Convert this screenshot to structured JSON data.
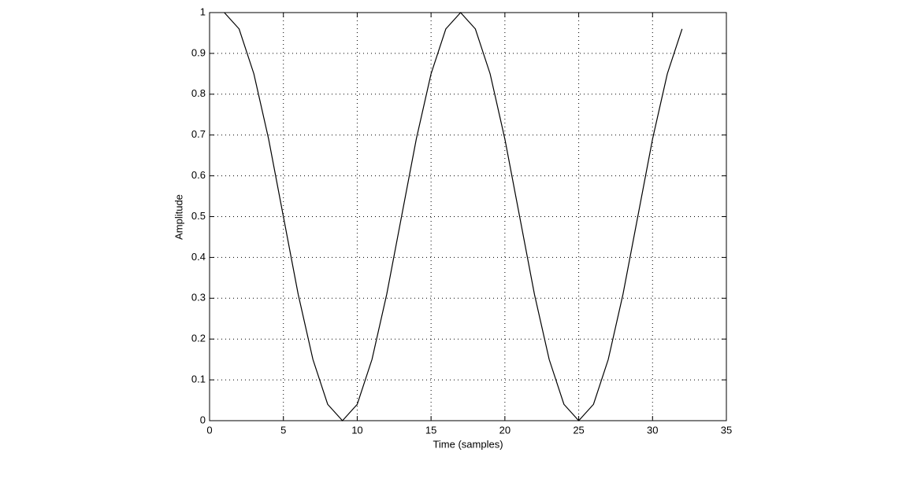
{
  "chart_data": {
    "type": "line",
    "xlabel": "Time (samples)",
    "ylabel": "Amplitude",
    "x": [
      1,
      2,
      3,
      4,
      5,
      6,
      7,
      8,
      9,
      10,
      11,
      12,
      13,
      14,
      15,
      16,
      17,
      18,
      19,
      20,
      21,
      22,
      23,
      24,
      25,
      26,
      27,
      28,
      29,
      30,
      31,
      32
    ],
    "series": [
      {
        "color": "#000000",
        "values": [
          1,
          0.96,
          0.85,
          0.69,
          0.5,
          0.31,
          0.15,
          0.04,
          0,
          0.04,
          0.15,
          0.31,
          0.5,
          0.69,
          0.85,
          0.96,
          1,
          0.96,
          0.85,
          0.69,
          0.5,
          0.31,
          0.15,
          0.04,
          0,
          0.04,
          0.15,
          0.31,
          0.5,
          0.69,
          0.85,
          0.96
        ]
      }
    ],
    "xlim": [
      0,
      35
    ],
    "xticks": [
      0,
      5,
      10,
      15,
      20,
      25,
      30,
      35
    ],
    "ylim": [
      0,
      1
    ],
    "yticks": [
      0,
      0.1,
      0.2,
      0.3,
      0.4,
      0.5,
      0.6,
      0.7,
      0.8,
      0.9,
      1
    ],
    "grid": true
  }
}
